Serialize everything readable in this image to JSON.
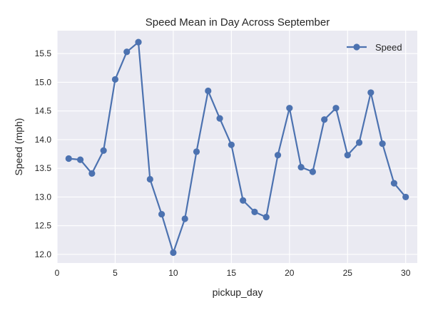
{
  "chart_data": {
    "type": "line",
    "title": "Speed Mean in Day Across September",
    "xlabel": "pickup_day",
    "ylabel": "Speed (mph)",
    "xlim": [
      0,
      31
    ],
    "ylim": [
      11.85,
      15.9
    ],
    "xticks": [
      0,
      5,
      10,
      15,
      20,
      25,
      30
    ],
    "yticks": [
      12.0,
      12.5,
      13.0,
      13.5,
      14.0,
      14.5,
      15.0,
      15.5
    ],
    "grid": true,
    "legend": "top-right",
    "colors": {
      "plot_background": "#eaeaf2",
      "series": "#4c72b0",
      "grid": "#ffffff"
    },
    "series": [
      {
        "name": "Speed",
        "marker": "circle",
        "x": [
          1,
          2,
          3,
          4,
          5,
          6,
          7,
          8,
          9,
          10,
          11,
          12,
          13,
          14,
          15,
          16,
          17,
          18,
          19,
          20,
          21,
          22,
          23,
          24,
          25,
          26,
          27,
          28,
          29,
          30
        ],
        "values": [
          13.67,
          13.65,
          13.41,
          13.81,
          15.05,
          15.53,
          15.7,
          13.31,
          12.7,
          12.03,
          12.62,
          13.79,
          14.85,
          14.37,
          13.91,
          12.94,
          12.74,
          12.65,
          13.73,
          14.55,
          13.52,
          13.44,
          14.35,
          14.55,
          13.73,
          13.95,
          14.82,
          13.93,
          13.24,
          13.0
        ]
      }
    ]
  }
}
